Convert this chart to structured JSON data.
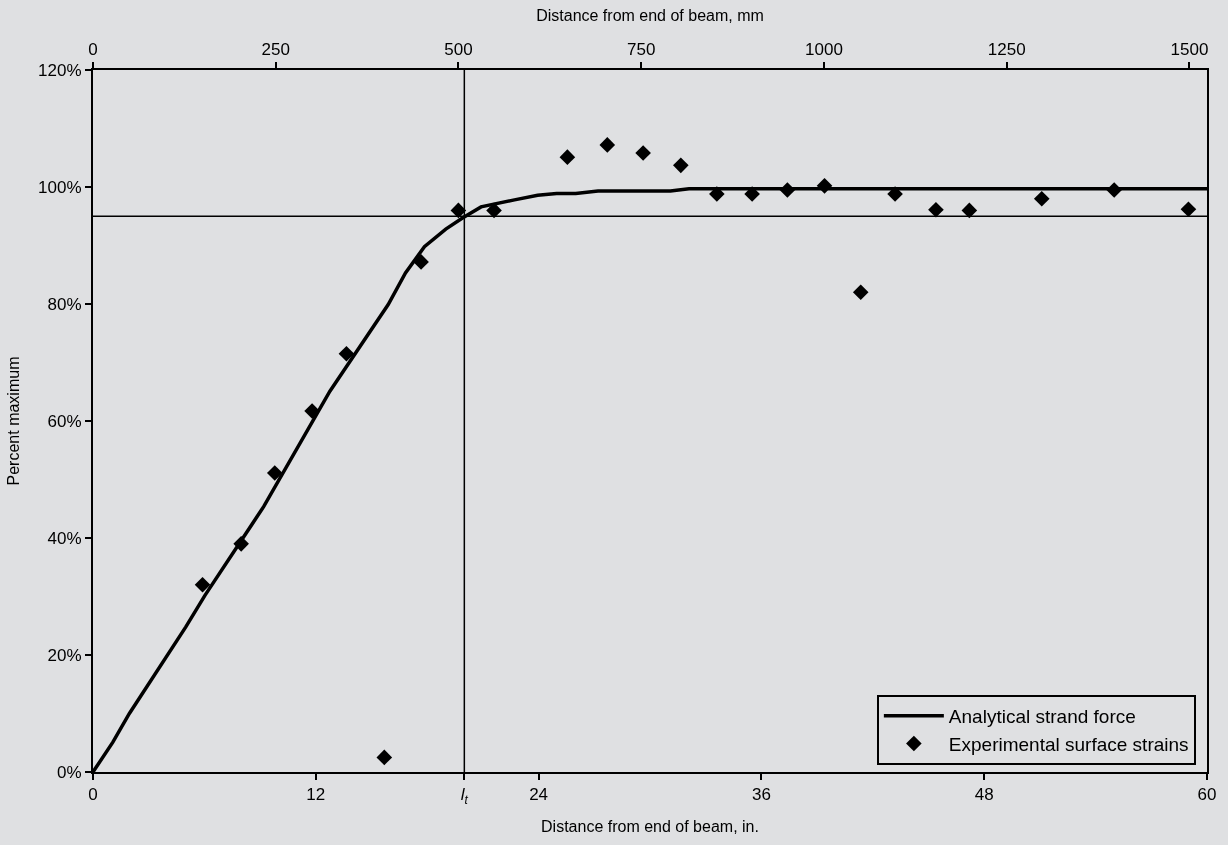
{
  "chart_data": {
    "type": "line",
    "xlabel": "Distance from end of beam, in.",
    "x2label": "Distance from end of beam, mm",
    "ylabel": "Percent maximum",
    "xlim": [
      0,
      60
    ],
    "xticks": [
      0,
      12,
      {
        "value": 20,
        "label": "l$_{t}$"
      },
      24,
      36,
      48,
      60
    ],
    "x2lim": [
      0,
      1524
    ],
    "x2ticks": [
      0,
      250,
      500,
      750,
      1000,
      1250,
      1500
    ],
    "ylim": [
      0,
      120
    ],
    "yticks": [
      {
        "value": 0,
        "label": "0%"
      },
      {
        "value": 20,
        "label": "20%"
      },
      {
        "value": 40,
        "label": "40%"
      },
      {
        "value": 60,
        "label": "60%"
      },
      {
        "value": 80,
        "label": "80%"
      },
      {
        "value": 100,
        "label": "100%"
      },
      {
        "value": 120,
        "label": "120%"
      }
    ],
    "grid": false,
    "legend": "bottom right",
    "series": [
      {
        "name": "Analytical strand force",
        "color": "#000000",
        "marker": "none",
        "line_style": "solid",
        "x": [
          0,
          1.07,
          1.96,
          5.0,
          6.03,
          9.2,
          12.76,
          15.9,
          16.83,
          17.85,
          19.0,
          19.9,
          20.9,
          22.7,
          23.95,
          24.97,
          26.0,
          27.2,
          31.1,
          32.1,
          60
        ],
        "values": [
          0,
          5.1,
          10.0,
          24.8,
          30.2,
          45.4,
          65.1,
          79.9,
          85.3,
          89.8,
          92.8,
          94.7,
          96.6,
          97.8,
          98.6,
          98.9,
          98.9,
          99.3,
          99.3,
          99.7,
          99.7
        ]
      },
      {
        "name": "Experimental surface strains",
        "type": "scatter",
        "color": "#000000",
        "marker": "diamond",
        "x": [
          5.9,
          7.98,
          9.79,
          11.8,
          13.65,
          15.69,
          17.67,
          19.68,
          21.6,
          25.55,
          27.7,
          29.63,
          31.66,
          33.6,
          35.5,
          37.4,
          39.4,
          41.35,
          43.2,
          45.4,
          47.2,
          51.1,
          55.0,
          59.0
        ],
        "values": [
          32.0,
          39.0,
          51.1,
          61.7,
          71.5,
          2.5,
          87.2,
          96.0,
          96.0,
          105.1,
          107.2,
          105.8,
          103.7,
          98.8,
          98.8,
          99.5,
          100.2,
          82.0,
          98.8,
          96.1,
          96.0,
          98.0,
          99.5,
          96.2
        ]
      }
    ],
    "ref_lines": [
      {
        "axis": "x",
        "value": 20,
        "color": "#000000",
        "line_style": "solid"
      },
      {
        "axis": "y",
        "value": 95,
        "color": "#000000",
        "line_style": "solid"
      }
    ]
  }
}
